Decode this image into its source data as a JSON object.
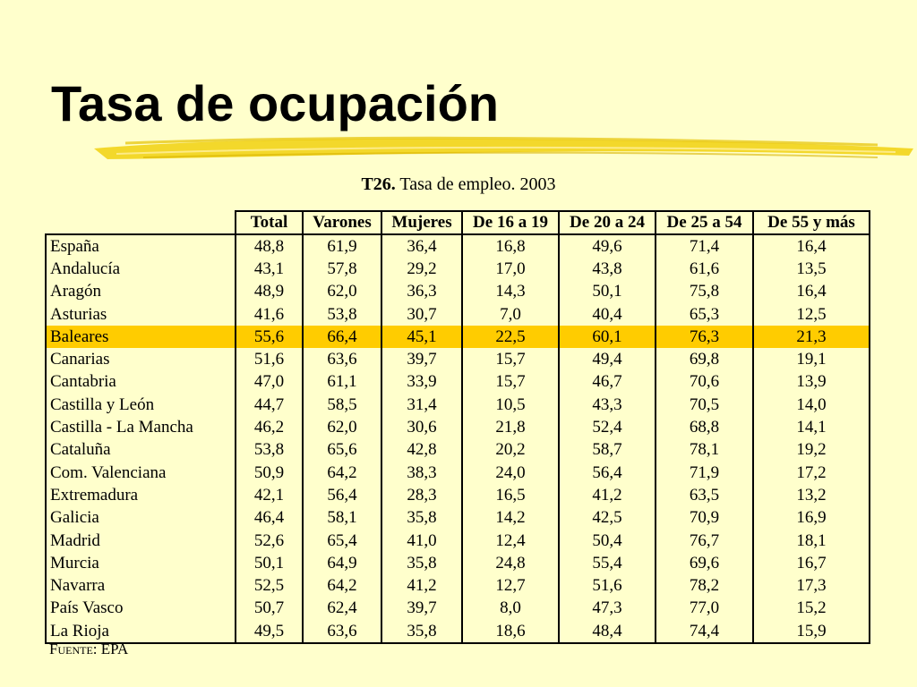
{
  "slide": {
    "title": "Tasa de ocupación",
    "caption_bold": "T26.",
    "caption_text": " Tasa de empleo. 2003",
    "source_label": "Fuente:",
    "source_value": " EPA"
  },
  "table": {
    "columns": [
      "Total",
      "Varones",
      "Mujeres",
      "De 16 a 19",
      "De 20 a 24",
      "De 25 a 54",
      "De 55 y más"
    ],
    "highlight_color": "#ffcc00",
    "rows": [
      {
        "region": "España",
        "values": [
          "48,8",
          "61,9",
          "36,4",
          "16,8",
          "49,6",
          "71,4",
          "16,4"
        ]
      },
      {
        "region": "Andalucía",
        "values": [
          "43,1",
          "57,8",
          "29,2",
          "17,0",
          "43,8",
          "61,6",
          "13,5"
        ]
      },
      {
        "region": "Aragón",
        "values": [
          "48,9",
          "62,0",
          "36,3",
          "14,3",
          "50,1",
          "75,8",
          "16,4"
        ]
      },
      {
        "region": "Asturias",
        "values": [
          "41,6",
          "53,8",
          "30,7",
          "7,0",
          "40,4",
          "65,3",
          "12,5"
        ]
      },
      {
        "region": "Baleares",
        "values": [
          "55,6",
          "66,4",
          "45,1",
          "22,5",
          "60,1",
          "76,3",
          "21,3"
        ],
        "highlight": true
      },
      {
        "region": "Canarias",
        "values": [
          "51,6",
          "63,6",
          "39,7",
          "15,7",
          "49,4",
          "69,8",
          "19,1"
        ]
      },
      {
        "region": "Cantabria",
        "values": [
          "47,0",
          "61,1",
          "33,9",
          "15,7",
          "46,7",
          "70,6",
          "13,9"
        ]
      },
      {
        "region": "Castilla y León",
        "values": [
          "44,7",
          "58,5",
          "31,4",
          "10,5",
          "43,3",
          "70,5",
          "14,0"
        ]
      },
      {
        "region": "Castilla - La Mancha",
        "values": [
          "46,2",
          "62,0",
          "30,6",
          "21,8",
          "52,4",
          "68,8",
          "14,1"
        ]
      },
      {
        "region": "Cataluña",
        "values": [
          "53,8",
          "65,6",
          "42,8",
          "20,2",
          "58,7",
          "78,1",
          "19,2"
        ]
      },
      {
        "region": "Com. Valenciana",
        "values": [
          "50,9",
          "64,2",
          "38,3",
          "24,0",
          "56,4",
          "71,9",
          "17,2"
        ]
      },
      {
        "region": "Extremadura",
        "values": [
          "42,1",
          "56,4",
          "28,3",
          "16,5",
          "41,2",
          "63,5",
          "13,2"
        ]
      },
      {
        "region": "Galicia",
        "values": [
          "46,4",
          "58,1",
          "35,8",
          "14,2",
          "42,5",
          "70,9",
          "16,9"
        ]
      },
      {
        "region": "Madrid",
        "values": [
          "52,6",
          "65,4",
          "41,0",
          "12,4",
          "50,4",
          "76,7",
          "18,1"
        ]
      },
      {
        "region": "Murcia",
        "values": [
          "50,1",
          "64,9",
          "35,8",
          "24,8",
          "55,4",
          "69,6",
          "16,7"
        ]
      },
      {
        "region": "Navarra",
        "values": [
          "52,5",
          "64,2",
          "41,2",
          "12,7",
          "51,6",
          "78,2",
          "17,3"
        ]
      },
      {
        "region": "País Vasco",
        "values": [
          "50,7",
          "62,4",
          "39,7",
          "8,0",
          "47,3",
          "77,0",
          "15,2"
        ]
      },
      {
        "region": "La Rioja",
        "values": [
          "49,5",
          "63,6",
          "35,8",
          "18,6",
          "48,4",
          "74,4",
          "15,9"
        ]
      }
    ]
  }
}
